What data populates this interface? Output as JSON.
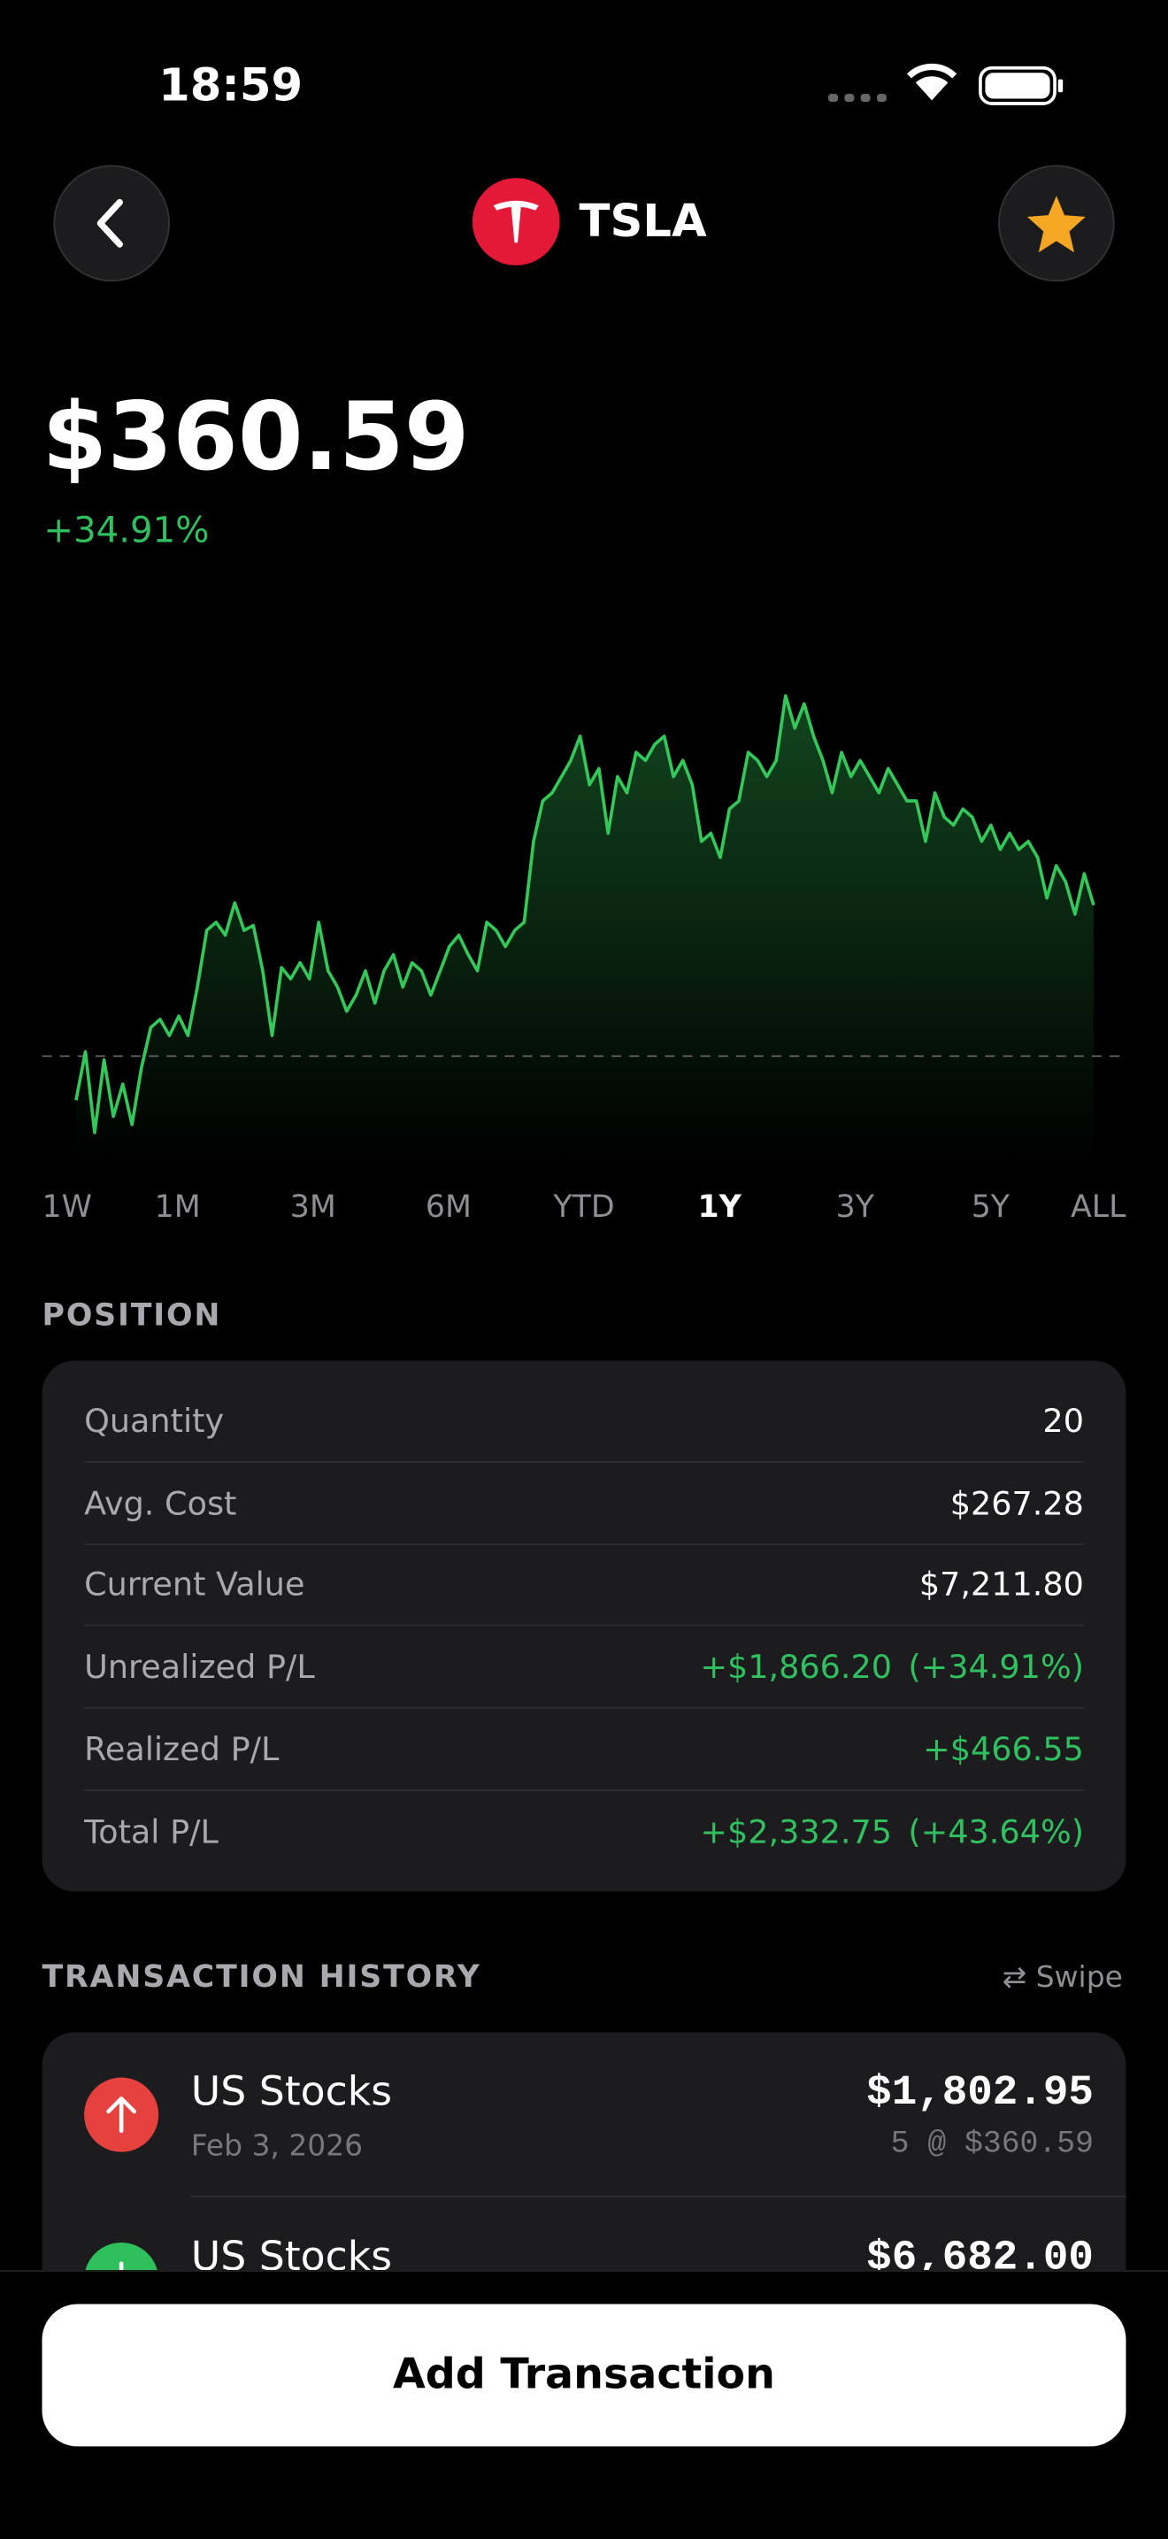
{
  "status": {
    "time": "18:59"
  },
  "header": {
    "symbol": "TSLA"
  },
  "quote": {
    "price": "$360.59",
    "change": "+34.91%"
  },
  "chart_data": {
    "type": "line",
    "color": "#34c759",
    "ylim": [
      200,
      500
    ],
    "baseline": 267.28,
    "values": [
      240,
      270,
      220,
      265,
      230,
      250,
      225,
      260,
      285,
      290,
      280,
      292,
      280,
      310,
      345,
      350,
      342,
      362,
      345,
      348,
      320,
      280,
      322,
      315,
      325,
      315,
      350,
      320,
      310,
      295,
      305,
      320,
      300,
      320,
      330,
      310,
      325,
      320,
      305,
      320,
      335,
      342,
      330,
      320,
      350,
      345,
      335,
      345,
      350,
      400,
      425,
      430,
      440,
      450,
      465,
      435,
      445,
      405,
      440,
      430,
      455,
      450,
      460,
      465,
      440,
      450,
      435,
      400,
      405,
      390,
      420,
      425,
      455,
      450,
      440,
      450,
      490,
      470,
      485,
      465,
      450,
      430,
      455,
      440,
      450,
      440,
      430,
      445,
      435,
      425,
      425,
      400,
      430,
      415,
      410,
      420,
      415,
      400,
      410,
      395,
      405,
      395,
      400,
      390,
      365,
      385,
      375,
      355,
      380,
      360.59
    ]
  },
  "ranges": [
    "1W",
    "1M",
    "3M",
    "6M",
    "YTD",
    "1Y",
    "3Y",
    "5Y",
    "ALL"
  ],
  "selected_range": 5,
  "position": {
    "title": "POSITION",
    "rows": [
      {
        "label": "Quantity",
        "value": "20"
      },
      {
        "label": "Avg. Cost",
        "value": "$267.28"
      },
      {
        "label": "Current Value",
        "value": "$7,211.80"
      },
      {
        "label": "Unrealized P/L",
        "value": "+$1,866.20",
        "extra": "(+34.91%)"
      },
      {
        "label": "Realized P/L",
        "value": "+$466.55"
      },
      {
        "label": "Total P/L",
        "value": "+$2,332.75",
        "extra": "(+43.64%)"
      }
    ]
  },
  "transactions": {
    "title": "TRANSACTION HISTORY",
    "hint": "Swipe",
    "items": [
      {
        "name": "US Stocks",
        "date": "Feb 3, 2026",
        "amount": "$1,802.95",
        "detail": "5 @ $360.59",
        "direction": "sell"
      },
      {
        "name": "US Stocks",
        "amount": "$6,682.00",
        "direction": "buy"
      }
    ]
  },
  "button": "Add Transaction"
}
